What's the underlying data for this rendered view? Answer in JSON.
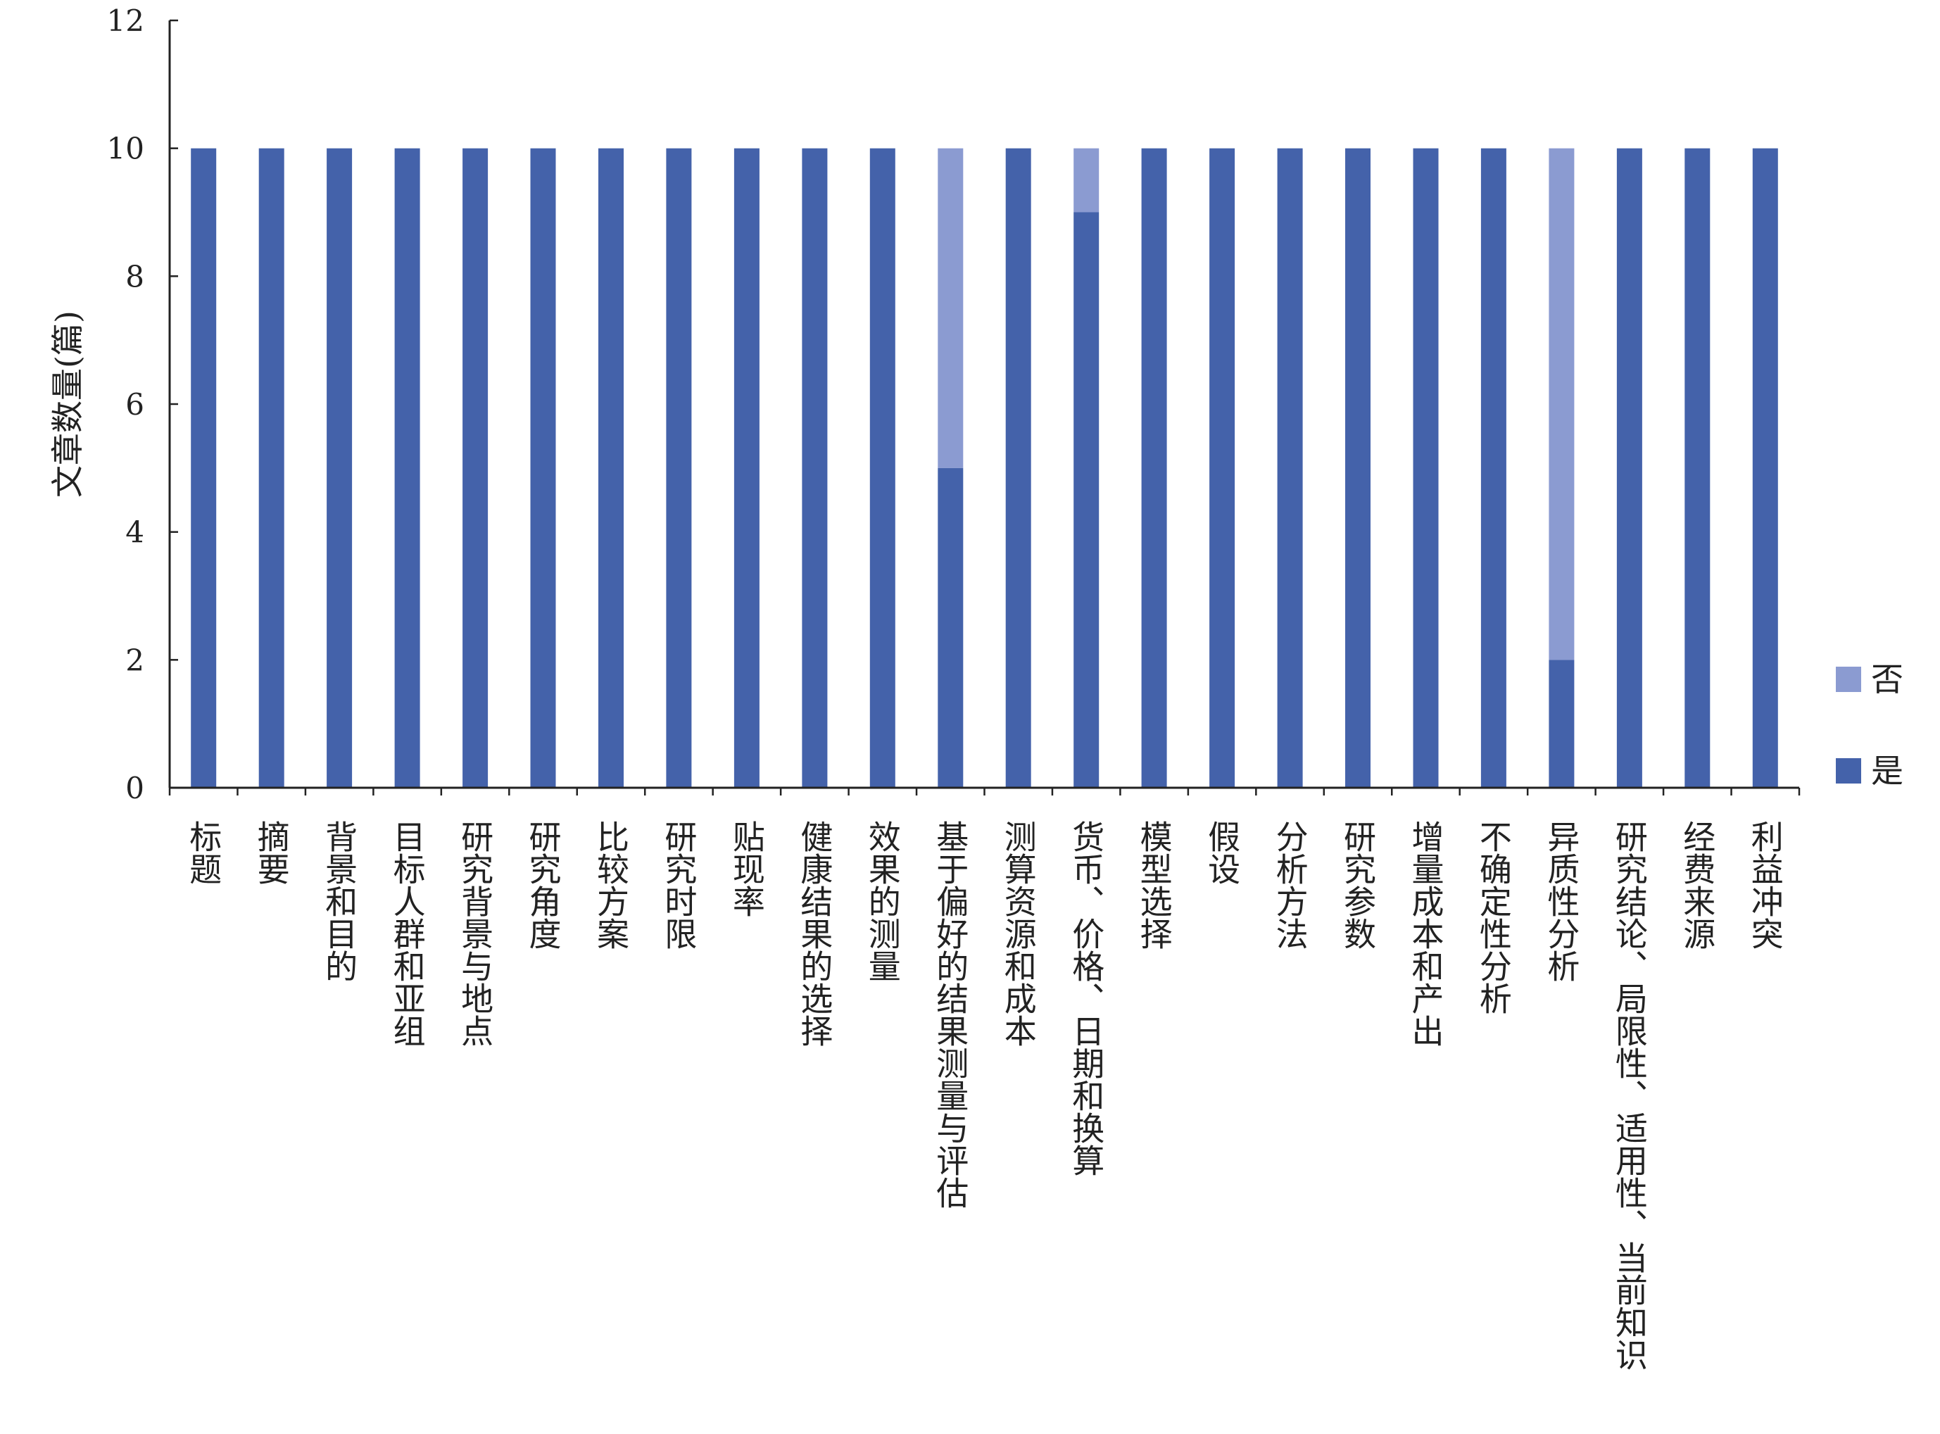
{
  "chart_data": {
    "type": "bar",
    "stacked": true,
    "title": "",
    "xlabel": "",
    "ylabel": "文章数量(篇)",
    "ylim": [
      0,
      12
    ],
    "yticks": [
      0,
      2,
      4,
      6,
      8,
      10,
      12
    ],
    "grid": false,
    "legend": "right",
    "categories": [
      "标题",
      "摘要",
      "背景和目的",
      "目标人群和亚组",
      "研究背景与地点",
      "研究角度",
      "比较方案",
      "研究时限",
      "贴现率",
      "健康结果的选择",
      "效果的测量",
      "基于偏好的结果测量与评估",
      "测算资源和成本",
      "货币、价格、日期和换算",
      "模型选择",
      "假设",
      "分析方法",
      "研究参数",
      "增量成本和产出",
      "不确定性分析",
      "异质性分析",
      "研究结论、局限性、适用性、当前知识",
      "经费来源",
      "利益冲突"
    ],
    "series": [
      {
        "name": "是",
        "color": "#4462aa",
        "values": [
          10,
          10,
          10,
          10,
          10,
          10,
          10,
          10,
          10,
          10,
          10,
          5,
          10,
          9,
          10,
          10,
          10,
          10,
          10,
          10,
          2,
          10,
          10,
          10
        ]
      },
      {
        "name": "否",
        "color": "#8b9bd1",
        "values": [
          0,
          0,
          0,
          0,
          0,
          0,
          0,
          0,
          0,
          0,
          0,
          5,
          0,
          1,
          0,
          0,
          0,
          0,
          0,
          0,
          8,
          0,
          0,
          0
        ]
      }
    ]
  }
}
